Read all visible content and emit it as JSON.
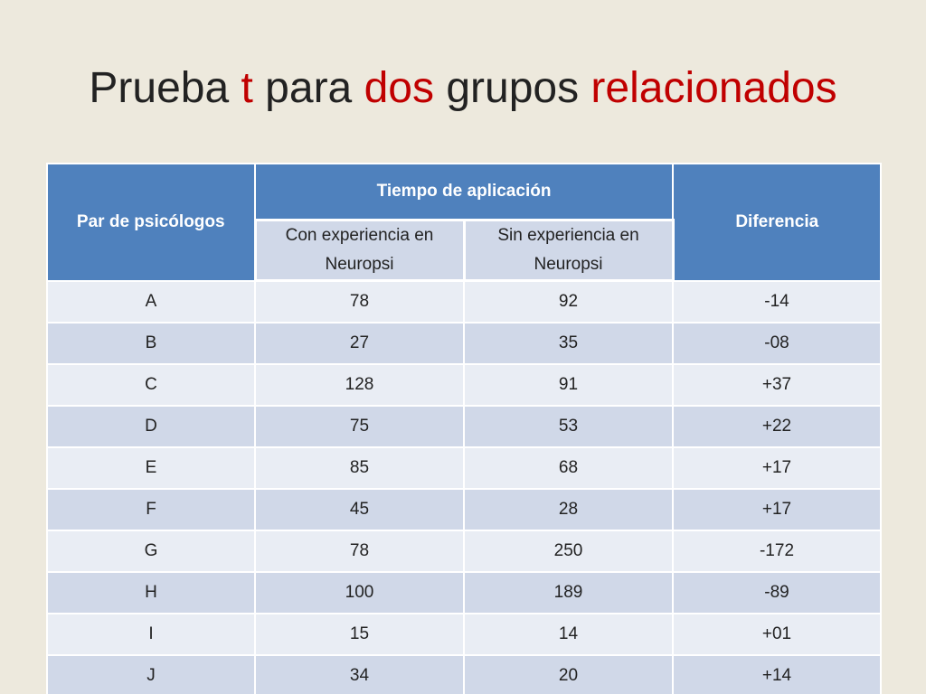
{
  "title": {
    "part1": "Prueba ",
    "part2": "t",
    "part3": " para ",
    "part4": "dos",
    "part5": " grupos ",
    "part6": "relacionados"
  },
  "colors": {
    "background": "#ede9dd",
    "title_text": "#222222",
    "title_accent": "#c00000",
    "header_bg": "#4f81bd",
    "row_light": "#e9edf4",
    "row_dark": "#d0d8e8"
  },
  "table": {
    "headers": {
      "pair": "Par de psicólogos",
      "time_group": "Tiempo de aplicación",
      "with_exp": "Con experiencia en Neuropsi",
      "without_exp": "Sin experiencia en Neuropsi",
      "difference": "Diferencia"
    },
    "rows": [
      {
        "pair": "A",
        "with": "78",
        "without": "92",
        "diff": "-14"
      },
      {
        "pair": "B",
        "with": "27",
        "without": "35",
        "diff": "-08"
      },
      {
        "pair": "C",
        "with": "128",
        "without": "91",
        "diff": "+37"
      },
      {
        "pair": "D",
        "with": "75",
        "without": "53",
        "diff": "+22"
      },
      {
        "pair": "E",
        "with": "85",
        "without": "68",
        "diff": "+17"
      },
      {
        "pair": "F",
        "with": "45",
        "without": "28",
        "diff": "+17"
      },
      {
        "pair": "G",
        "with": "78",
        "without": "250",
        "diff": "-172"
      },
      {
        "pair": "H",
        "with": "100",
        "without": "189",
        "diff": "-89"
      },
      {
        "pair": "I",
        "with": "15",
        "without": "14",
        "diff": "+01"
      },
      {
        "pair": "J",
        "with": "34",
        "without": "20",
        "diff": "+14"
      }
    ]
  }
}
